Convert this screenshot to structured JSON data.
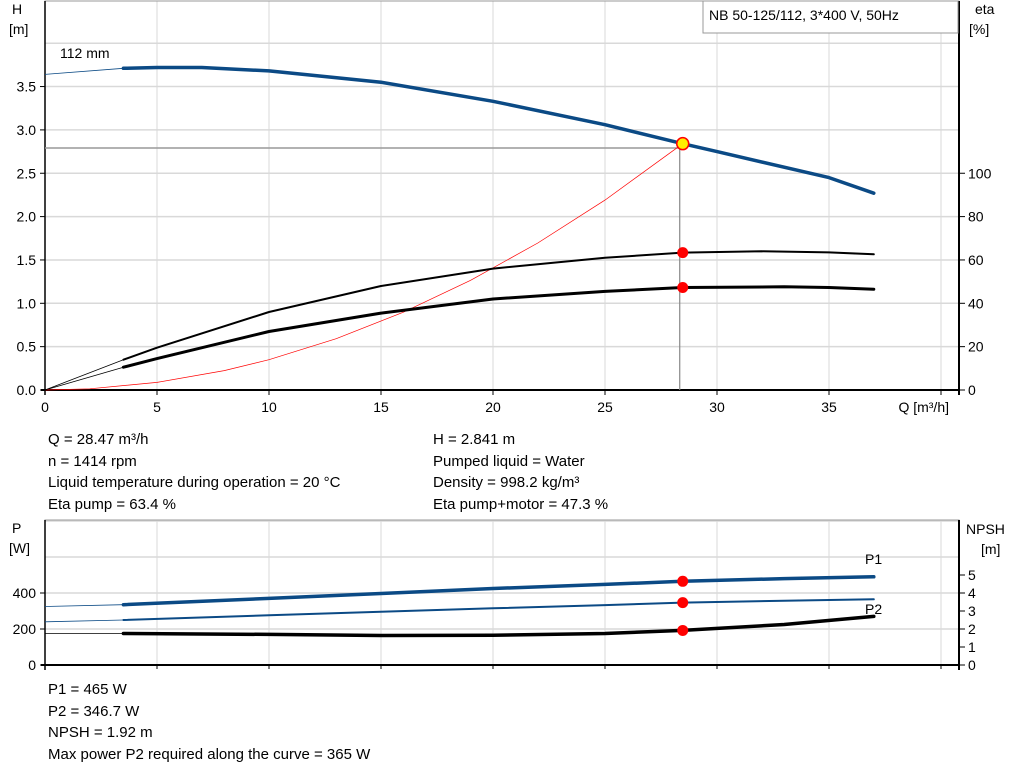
{
  "title_box": "NB 50-125/112, 3*400 V, 50Hz",
  "colors": {
    "head": "#0b4a85",
    "eta": "#000000",
    "system": "#ff0000",
    "duty_point": "#ff0000",
    "duty_fill": "#ffee00",
    "p1": "#0b4a85",
    "p2": "#0b4a85",
    "npsh": "#000000",
    "grid": "#d9d9d9"
  },
  "chart_data": [
    {
      "type": "line",
      "xlabel": "Q [m³/h]",
      "ylabel_left": [
        "H",
        "[m]"
      ],
      "ylabel_right": [
        "eta",
        "[%]"
      ],
      "xlim": [
        0,
        40
      ],
      "xticks": [
        "0",
        "5",
        "10",
        "15",
        "20",
        "25",
        "30",
        "35"
      ],
      "ylim_left": [
        0,
        4.5
      ],
      "yticks_left": [
        "0.0",
        "0.5",
        "1.0",
        "1.5",
        "2.0",
        "2.5",
        "3.0",
        "3.5"
      ],
      "ylim_right": [
        0,
        180
      ],
      "yticks_right": [
        "0",
        "20",
        "40",
        "60",
        "80",
        "100"
      ],
      "grid": true,
      "curve_label": "112 mm",
      "series": [
        {
          "key": "head",
          "axis": "left",
          "x": [
            0,
            3.5,
            5,
            7,
            10,
            15,
            20,
            25,
            28.47,
            30,
            35,
            37
          ],
          "y": [
            3.64,
            3.71,
            3.72,
            3.72,
            3.68,
            3.55,
            3.33,
            3.06,
            2.841,
            2.75,
            2.45,
            2.27
          ]
        },
        {
          "key": "eta_pump",
          "axis": "right",
          "x": [
            0,
            3.5,
            5,
            10,
            15,
            20,
            25,
            28.47,
            32,
            35,
            37
          ],
          "y": [
            0,
            14,
            19.5,
            36,
            48,
            56,
            61,
            63.4,
            64,
            63.5,
            62.6
          ]
        },
        {
          "key": "eta_pump_motor",
          "axis": "right",
          "x": [
            0,
            3.5,
            5,
            10,
            15,
            20,
            25,
            28.47,
            33,
            35,
            37
          ],
          "y": [
            0,
            10.5,
            14.5,
            27,
            35.5,
            42,
            45.5,
            47.3,
            47.6,
            47.3,
            46.5
          ]
        },
        {
          "key": "system",
          "axis": "left",
          "x": [
            0,
            2,
            5,
            8,
            10,
            13,
            16,
            19,
            22,
            25,
            28.47
          ],
          "y": [
            0,
            0.014,
            0.088,
            0.224,
            0.35,
            0.592,
            0.897,
            1.265,
            1.696,
            2.19,
            2.841
          ]
        }
      ],
      "duty_point": {
        "Q": 28.47,
        "H": 2.841,
        "eta_pump": 63.4,
        "eta_pump_motor": 47.3
      }
    },
    {
      "type": "line",
      "ylabel_left": [
        "P",
        "[W]"
      ],
      "ylabel_right": [
        "NPSH",
        "[m]"
      ],
      "xlim": [
        0,
        40
      ],
      "ylim_left": [
        0,
        800
      ],
      "yticks_left": [
        "0",
        "200",
        "400"
      ],
      "ylim_right": [
        0,
        8
      ],
      "yticks_right": [
        "0",
        "1",
        "2",
        "3",
        "4",
        "5"
      ],
      "grid": true,
      "series": [
        {
          "key": "P1",
          "name": "P1",
          "axis": "left",
          "x": [
            0,
            3.5,
            10,
            15,
            20,
            25,
            28.47,
            33,
            37
          ],
          "y": [
            325,
            335,
            370,
            397,
            425,
            448,
            465,
            480,
            490
          ]
        },
        {
          "key": "P2",
          "name": "P2",
          "axis": "left",
          "x": [
            0,
            3.5,
            10,
            15,
            20,
            25,
            28.47,
            33,
            37
          ],
          "y": [
            240,
            250,
            276,
            296,
            315,
            333,
            346.7,
            357,
            365
          ]
        },
        {
          "key": "NPSH",
          "axis": "right",
          "x": [
            0,
            3.5,
            10,
            15,
            20,
            25,
            28.47,
            33,
            37
          ],
          "y": [
            1.75,
            1.75,
            1.7,
            1.64,
            1.65,
            1.75,
            1.92,
            2.25,
            2.7
          ]
        }
      ],
      "duty_point": {
        "Q": 28.47,
        "P1": 465,
        "P2": 346.7,
        "NPSH": 1.92
      }
    }
  ],
  "info_top": {
    "left": [
      "Q = 28.47 m³/h",
      "n = 1414 rpm",
      "Liquid temperature during operation = 20 °C",
      "Eta pump = 63.4 %"
    ],
    "right": [
      "H = 2.841 m",
      "Pumped liquid = Water",
      "Density = 998.2 kg/m³",
      "Eta pump+motor = 47.3 %"
    ]
  },
  "info_bottom": [
    "P1 = 465 W",
    "P2 = 346.7 W",
    "NPSH = 1.92 m",
    "Max power P2 required along the curve = 365 W"
  ]
}
